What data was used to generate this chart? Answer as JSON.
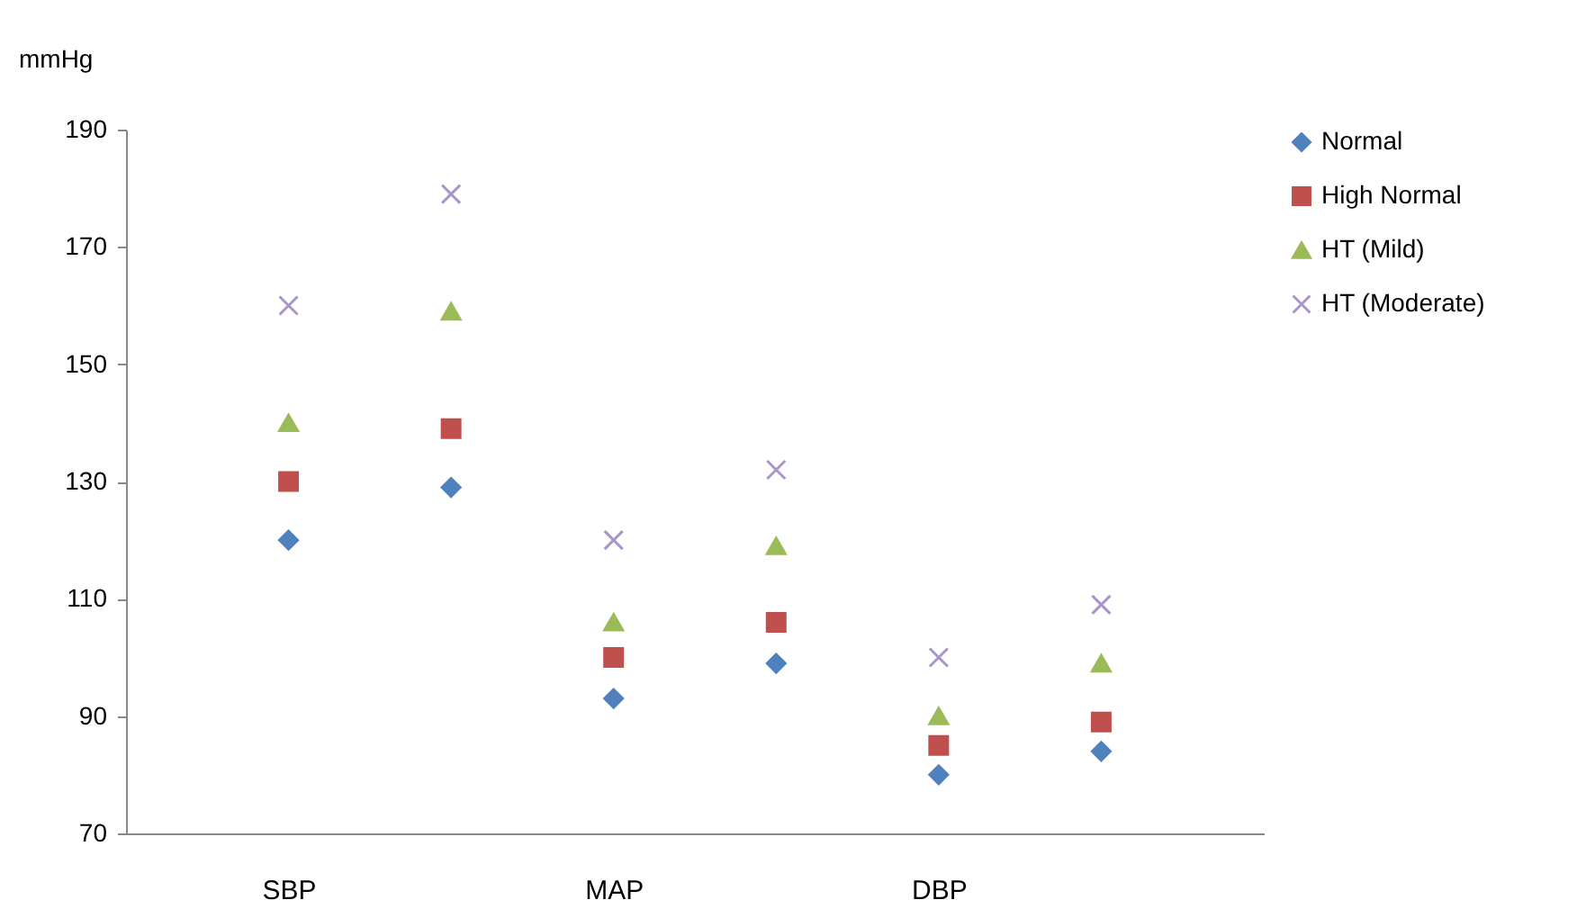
{
  "chart_data": {
    "type": "scatter",
    "ylabel": "mmHg",
    "categories": [
      "SBP",
      null,
      "MAP",
      null,
      "DBP",
      null
    ],
    "ylim": [
      70,
      190
    ],
    "yticks": [
      70,
      90,
      110,
      130,
      150,
      170,
      190
    ],
    "grid": false,
    "legend": "right",
    "series": [
      {
        "name": "Normal",
        "color": "#4f81bd",
        "marker": "diamond",
        "values": [
          120,
          129,
          93,
          99,
          80,
          84
        ]
      },
      {
        "name": "High Normal",
        "color": "#c0504d",
        "marker": "square",
        "values": [
          130,
          139,
          100,
          106,
          85,
          89
        ]
      },
      {
        "name": "HT (Mild)",
        "color": "#9bbb59",
        "marker": "triangle",
        "values": [
          140,
          159,
          106,
          119,
          90,
          99
        ]
      },
      {
        "name": "HT (Moderate)",
        "color": "#a994cc",
        "marker": "cross",
        "values": [
          160,
          179,
          120,
          132,
          100,
          109
        ]
      }
    ]
  }
}
